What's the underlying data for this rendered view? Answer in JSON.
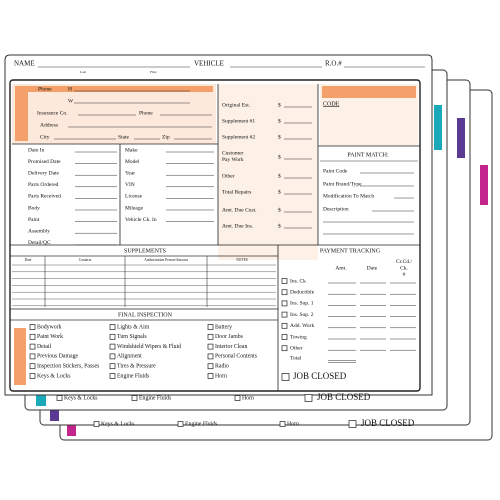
{
  "header": {
    "name": "NAME",
    "last": "Last",
    "first": "First",
    "vehicle": "VEHICLE",
    "ro": "R.O.#"
  },
  "contact": {
    "phone": "Phone",
    "h": "H",
    "w": "W",
    "insurance": "Insurance Co.",
    "phone2": "Phone",
    "address": "Address",
    "city": "City",
    "state": "State",
    "zip": "Zip"
  },
  "estimate": [
    {
      "label": "Original Est.",
      "unit": "$"
    },
    {
      "label": "Supplement #1",
      "unit": "$"
    },
    {
      "label": "Supplement #2",
      "unit": "$"
    },
    {
      "label": "Customer Pay Work",
      "unit": "$"
    },
    {
      "label": "Other",
      "unit": "$"
    },
    {
      "label": "Total Repairs",
      "unit": "$"
    },
    {
      "label": "Amt. Due Cust.",
      "unit": "$"
    },
    {
      "label": "Amt. Due Ins.",
      "unit": "$"
    }
  ],
  "code": "CODE",
  "paint_match": {
    "title": "PAINT MATCH:",
    "fields": [
      "Paint Code",
      "Paint Brand/Type",
      "Modification To Match",
      "Description"
    ]
  },
  "schedule": [
    "Date In",
    "Promised Date",
    "Delivery Date",
    "Parts Ordered",
    "Parts Received",
    "Body",
    "Paint",
    "Assembly",
    "Detail/QC"
  ],
  "vehicle": [
    "Make",
    "Model",
    "Year",
    "VIN",
    "License",
    "Mileage",
    "Vehicle Ck. In"
  ],
  "supplements": {
    "title": "SUPPLEMENTS",
    "columns": [
      "Date",
      "Contacts",
      "Authorization Person/Amount",
      "NOTES"
    ]
  },
  "payment": {
    "title": "PAYMENT TRACKING",
    "columns": [
      "Amt.",
      "Date",
      "Cr.Cd./ Ck. #"
    ],
    "rows": [
      "Ins. Ck",
      "Deductible",
      "Ins. Sup. 1",
      "Ins. Sup. 2",
      "Add. Work",
      "Towing",
      "Other"
    ],
    "total": "Total",
    "job_closed": "JOB CLOSED"
  },
  "final_inspection": {
    "title": "FINAL INSPECTION",
    "columns": [
      [
        "Bodywork",
        "Paint Work",
        "Detail",
        "Previous Damage",
        "Inspection Stickers, Passes",
        "Keys & Locks"
      ],
      [
        "Lights & Aim",
        "Turn Signals",
        "Windshield Wipers & Fluid",
        "Alignment",
        "Tires & Pressure",
        "Engine Fluids"
      ],
      [
        "Battery",
        "Door Jambs",
        "Interior Clean",
        "Personal Contents",
        "Radio",
        "Horn"
      ]
    ]
  },
  "back_sheets": [
    {
      "items": [
        "Keys & Locks",
        "Engine Fluids",
        "Horn"
      ],
      "job_closed": "JOB CLOSED"
    },
    {
      "items": [
        "Keys & Locks",
        "Engine Fluids",
        "Horn"
      ],
      "job_closed": "JOB CLOSED"
    }
  ]
}
